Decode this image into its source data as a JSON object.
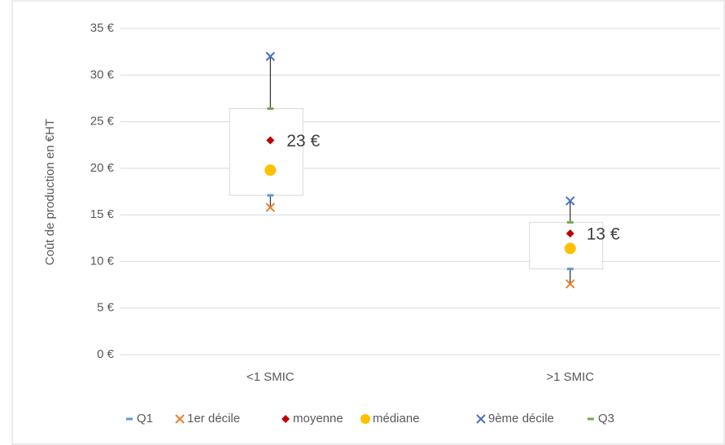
{
  "chart_data": {
    "type": "box",
    "y_label": "Coût de production en €HT",
    "categories": [
      "<1 SMIC",
      ">1 SMIC"
    ],
    "ylim": [
      0,
      35
    ],
    "yticks": [
      {
        "value": 0,
        "label": "0 €"
      },
      {
        "value": 5,
        "label": "5 €"
      },
      {
        "value": 10,
        "label": "10 €"
      },
      {
        "value": 15,
        "label": "15 €"
      },
      {
        "value": 20,
        "label": "20 €"
      },
      {
        "value": 25,
        "label": "25 €"
      },
      {
        "value": 30,
        "label": "30 €"
      },
      {
        "value": 35,
        "label": "35 €"
      }
    ],
    "grid": true,
    "legend": "bottom",
    "series": [
      {
        "name": "Q1",
        "color": "#5b9bd5",
        "marker": "dash",
        "values": [
          17.1,
          9.2
        ]
      },
      {
        "name": "1er décile",
        "color": "#ed7d31",
        "marker": "x",
        "values": [
          15.8,
          7.6
        ]
      },
      {
        "name": "moyenne",
        "color": "#c00000",
        "marker": "diamond",
        "values": [
          23,
          13
        ],
        "value_labels": [
          "23 €",
          "13 €"
        ]
      },
      {
        "name": "médiane",
        "color": "#ffc000",
        "marker": "circle",
        "values": [
          19.8,
          11.4
        ]
      },
      {
        "name": "9ème décile",
        "color": "#4472c4",
        "marker": "x",
        "values": [
          32,
          16.5
        ]
      },
      {
        "name": "Q3",
        "color": "#70ad47",
        "marker": "dash",
        "values": [
          26.4,
          14.2
        ]
      }
    ]
  }
}
